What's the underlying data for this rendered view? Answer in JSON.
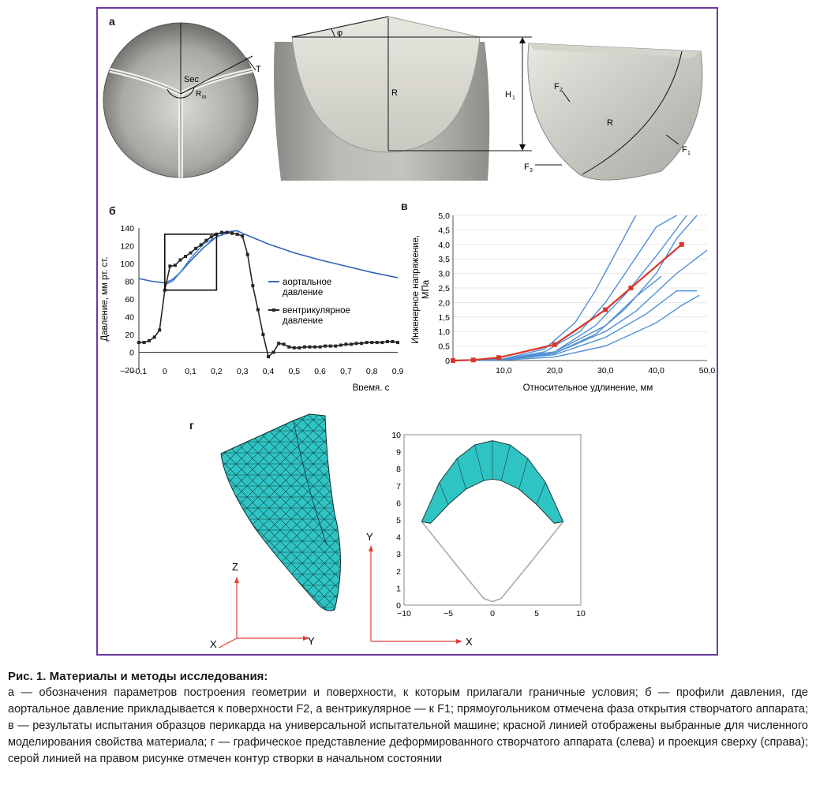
{
  "panel_labels": {
    "a": "а",
    "b": "б",
    "v": "в",
    "g": "г"
  },
  "panel_a": {
    "labels": {
      "sec": "Sec",
      "rin": "R",
      "rin_sub": "in",
      "t": "T",
      "phi": "φ",
      "r_mid": "R",
      "h1": "H",
      "h1_sub": "1",
      "f2": "F",
      "f2_sub": "2",
      "r_right": "R",
      "f1": "F",
      "f1_sub": "1",
      "f3": "F",
      "f3_sub": "3"
    }
  },
  "chart_data": [
    {
      "id": "b",
      "type": "line",
      "xlabel": "Время, с",
      "ylabel": "Давление, мм рт. ст.",
      "xlim": [
        -0.1,
        0.9
      ],
      "ylim": [
        -20,
        140
      ],
      "x_ticks": [
        "–0,1",
        "0",
        "0,1",
        "0,2",
        "0,3",
        "0,4",
        "0,5",
        "0,6",
        "0,7",
        "0,8",
        "0,9"
      ],
      "y_ticks": [
        "–20",
        "0",
        "20",
        "40",
        "60",
        "80",
        "100",
        "120",
        "140"
      ],
      "legend": [
        "аортальное давление",
        "вентрикулярное давление"
      ],
      "legend_lines": [
        [
          "аортальное",
          "давление"
        ],
        [
          "вентрикулярное",
          "давление"
        ]
      ],
      "series": [
        {
          "name": "аортальное давление",
          "color": "#2e64b8",
          "x": [
            -0.1,
            -0.05,
            0.0,
            0.03,
            0.06,
            0.1,
            0.15,
            0.2,
            0.25,
            0.28,
            0.3,
            0.35,
            0.4,
            0.5,
            0.6,
            0.7,
            0.8,
            0.9
          ],
          "y": [
            83,
            80,
            78,
            82,
            90,
            103,
            118,
            130,
            136,
            137,
            134,
            128,
            122,
            112,
            104,
            97,
            90,
            84
          ]
        },
        {
          "name": "",
          "color": "#3d7fd6",
          "x": [
            0.0,
            0.03,
            0.06,
            0.1,
            0.15,
            0.2,
            0.25
          ],
          "y": [
            76,
            80,
            90,
            106,
            122,
            130,
            135
          ]
        },
        {
          "name": "вентрикулярное давление",
          "color": "#262626",
          "x": [
            -0.1,
            -0.08,
            -0.06,
            -0.04,
            -0.02,
            0.0,
            0.02,
            0.04,
            0.06,
            0.08,
            0.1,
            0.12,
            0.14,
            0.16,
            0.18,
            0.2,
            0.22,
            0.24,
            0.26,
            0.28,
            0.3,
            0.32,
            0.34,
            0.36,
            0.38,
            0.4,
            0.42,
            0.44,
            0.46,
            0.48,
            0.5,
            0.52,
            0.54,
            0.56,
            0.58,
            0.6,
            0.62,
            0.64,
            0.66,
            0.68,
            0.7,
            0.72,
            0.74,
            0.76,
            0.78,
            0.8,
            0.82,
            0.84,
            0.86,
            0.88,
            0.9
          ],
          "y": [
            11,
            11,
            13,
            17,
            25,
            70,
            97,
            98,
            104,
            108,
            112,
            117,
            121,
            126,
            130,
            133,
            135,
            135,
            134,
            133,
            131,
            110,
            75,
            48,
            20,
            -5,
            0,
            10,
            9,
            6,
            5,
            5,
            6,
            6,
            6,
            6,
            7,
            7,
            7,
            8,
            9,
            9,
            10,
            10,
            11,
            11,
            11,
            11,
            12,
            12,
            11
          ]
        }
      ],
      "highlight_box": {
        "x": [
          0.0,
          0.2
        ],
        "y": [
          70,
          133
        ]
      }
    },
    {
      "id": "v",
      "type": "line",
      "xlabel": "Относительное удлинение, мм",
      "ylabel": "Инженерное напряжение, МПа",
      "ylabel_lines": [
        "Инженерное напряжение,",
        "МПа"
      ],
      "xlim": [
        0,
        50
      ],
      "ylim": [
        0,
        5
      ],
      "x_ticks": [
        "10,0",
        "20,0",
        "30,0",
        "40,0",
        "50,0"
      ],
      "y_ticks": [
        "0",
        "0,5",
        "1,0",
        "1,5",
        "2,0",
        "2,5",
        "3,0",
        "3,5",
        "4,0",
        "4,5",
        "5,0"
      ],
      "series": [
        {
          "name": "",
          "color": "#4f8fd6",
          "x": [
            0,
            10,
            18,
            25,
            30,
            35,
            40,
            44
          ],
          "y": [
            0,
            0.05,
            0.3,
            1.0,
            2.0,
            3.3,
            4.6,
            5.0
          ]
        },
        {
          "name": "",
          "color": "#4f8fd6",
          "x": [
            0,
            10,
            18,
            24,
            28,
            32,
            36
          ],
          "y": [
            0,
            0.06,
            0.4,
            1.3,
            2.4,
            3.7,
            5.0
          ]
        },
        {
          "name": "",
          "color": "#4f8fd6",
          "x": [
            0,
            10,
            20,
            28,
            34,
            40,
            46
          ],
          "y": [
            0,
            0.04,
            0.3,
            1.2,
            2.3,
            3.6,
            5.0
          ]
        },
        {
          "name": "",
          "color": "#4f8fd6",
          "x": [
            0,
            10,
            20,
            28,
            34,
            40,
            44,
            48
          ],
          "y": [
            0,
            0.04,
            0.25,
            0.9,
            1.8,
            3.0,
            4.2,
            5.0
          ]
        },
        {
          "name": "",
          "color": "#4f8fd6",
          "x": [
            0,
            10,
            20,
            30,
            36,
            41
          ],
          "y": [
            0,
            0.04,
            0.3,
            1.2,
            2.2,
            2.9
          ]
        },
        {
          "name": "",
          "color": "#4f8fd6",
          "x": [
            0,
            10,
            20,
            30,
            38,
            44,
            48
          ],
          "y": [
            0,
            0.03,
            0.2,
            0.8,
            1.6,
            2.4,
            2.4
          ]
        },
        {
          "name": "",
          "color": "#4f8fd6",
          "x": [
            0,
            10,
            20,
            30,
            40,
            45,
            48.5
          ],
          "y": [
            0,
            0.02,
            0.12,
            0.5,
            1.3,
            1.9,
            2.25
          ]
        },
        {
          "name": "",
          "color": "#4f8fd6",
          "x": [
            0,
            10,
            20,
            30,
            36,
            44,
            50
          ],
          "y": [
            0,
            0.03,
            0.25,
            1.0,
            1.7,
            3.0,
            3.8
          ]
        },
        {
          "name": "",
          "color": "#d9362b",
          "x": [
            0,
            4,
            9,
            20,
            30,
            35,
            45
          ],
          "y": [
            0,
            0.02,
            0.1,
            0.55,
            1.75,
            2.5,
            4.0
          ],
          "markers": true
        }
      ]
    },
    {
      "id": "g-right",
      "type": "scatter",
      "xlim": [
        -10,
        10
      ],
      "ylim": [
        0,
        10
      ],
      "x_ticks": [
        "−10",
        "−5",
        "0",
        "5",
        "10"
      ],
      "y_ticks": [
        "0",
        "1",
        "2",
        "3",
        "4",
        "5",
        "6",
        "7",
        "8",
        "9",
        "10"
      ],
      "outline": {
        "x": [
          -8,
          -4,
          -1,
          0,
          1,
          4,
          8
        ],
        "y": [
          4.9,
          2.3,
          0.4,
          0.2,
          0.4,
          2.3,
          4.9
        ]
      },
      "outer_arc": {
        "x": [
          -8,
          -6,
          -4,
          -2,
          0,
          2,
          4,
          6,
          8
        ],
        "y": [
          4.9,
          7.2,
          8.6,
          9.4,
          9.65,
          9.4,
          8.6,
          7.2,
          4.9
        ]
      },
      "inner_arc": {
        "x": [
          -7,
          -5,
          -3,
          -1,
          0,
          1,
          3,
          5,
          7
        ],
        "y": [
          4.8,
          5.9,
          6.8,
          7.3,
          7.4,
          7.3,
          6.8,
          5.9,
          4.8
        ]
      },
      "fill_color": "#2fc4c4"
    }
  ],
  "panel_g": {
    "axes3d": {
      "z": "Z",
      "y": "Y",
      "x": "X"
    },
    "axes2d": {
      "y": "Y",
      "x": "X"
    },
    "mesh_color": "#2fc4c4",
    "axis_color": "#e0403a"
  },
  "caption": {
    "title": "Рис. 1. Материалы и методы исследования:",
    "body": "а — обозначения параметров построения геометрии и поверхности, к которым прилагали граничные условия; б — профили давления, где аортальное давление прикладывается к поверхности F2, а вентрикулярное — к F1; прямоугольником отмечена фаза открытия створчатого аппарата; в — результаты испытания образцов перикарда на универсальной испытательной машине; красной линией отображены выбранные для численного моделирования свойства материала; г — графическое представление деформированного створчатого аппарата (слева) и проекция сверху (справа); серой линией на правом рисунке отмечен контур створки в начальном состоянии"
  }
}
